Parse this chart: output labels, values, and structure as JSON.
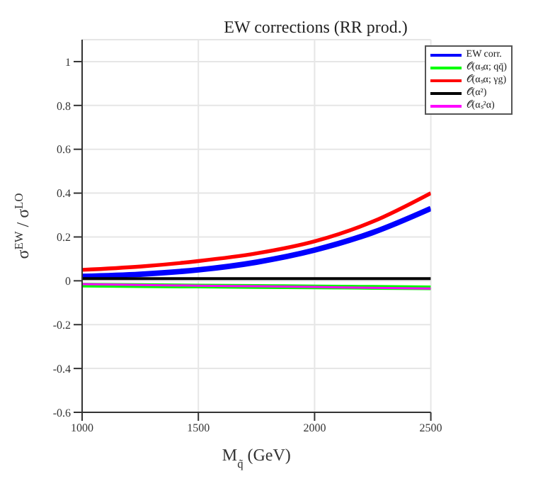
{
  "chart_data": {
    "type": "line",
    "title": "EW corrections (RR prod.)",
    "xlabel": "M$_{q̃}$ (GeV)",
    "ylabel": "σ$^{EW}$ / σ$^{LO}$",
    "x": [
      1000,
      1250,
      1500,
      1750,
      2000,
      2250,
      2500
    ],
    "series": [
      {
        "name": "EW corr.",
        "color": "#0000ff",
        "values": [
          0.02,
          0.03,
          0.05,
          0.085,
          0.14,
          0.22,
          0.33
        ]
      },
      {
        "name": "𝒪(αₛα; qq̄)",
        "color": "#00ff00",
        "values": [
          -0.02,
          -0.022,
          -0.024,
          -0.026,
          -0.028,
          -0.03,
          -0.032
        ]
      },
      {
        "name": "𝒪(αₛα; γg)",
        "color": "#ff0000",
        "values": [
          0.05,
          0.065,
          0.09,
          0.125,
          0.18,
          0.27,
          0.4
        ]
      },
      {
        "name": "𝒪(α²)",
        "color": "#000000",
        "values": [
          0.01,
          0.01,
          0.01,
          0.01,
          0.01,
          0.01,
          0.01
        ]
      },
      {
        "name": "𝒪(αₛ²α)",
        "color": "#ff00ff",
        "values": [
          -0.015,
          -0.019,
          -0.022,
          -0.025,
          -0.028,
          -0.032,
          -0.035
        ]
      }
    ],
    "xlim": [
      1000,
      2500
    ],
    "xticks": [
      1000,
      1500,
      2000,
      2500
    ],
    "ylim": [
      -0.6,
      1.1
    ],
    "yticks": [
      -0.6,
      -0.4,
      -0.2,
      0,
      0.2,
      0.4,
      0.6,
      0.8,
      1
    ],
    "grid": true,
    "legend": "top right",
    "marker": "none",
    "line_style": "solid"
  }
}
